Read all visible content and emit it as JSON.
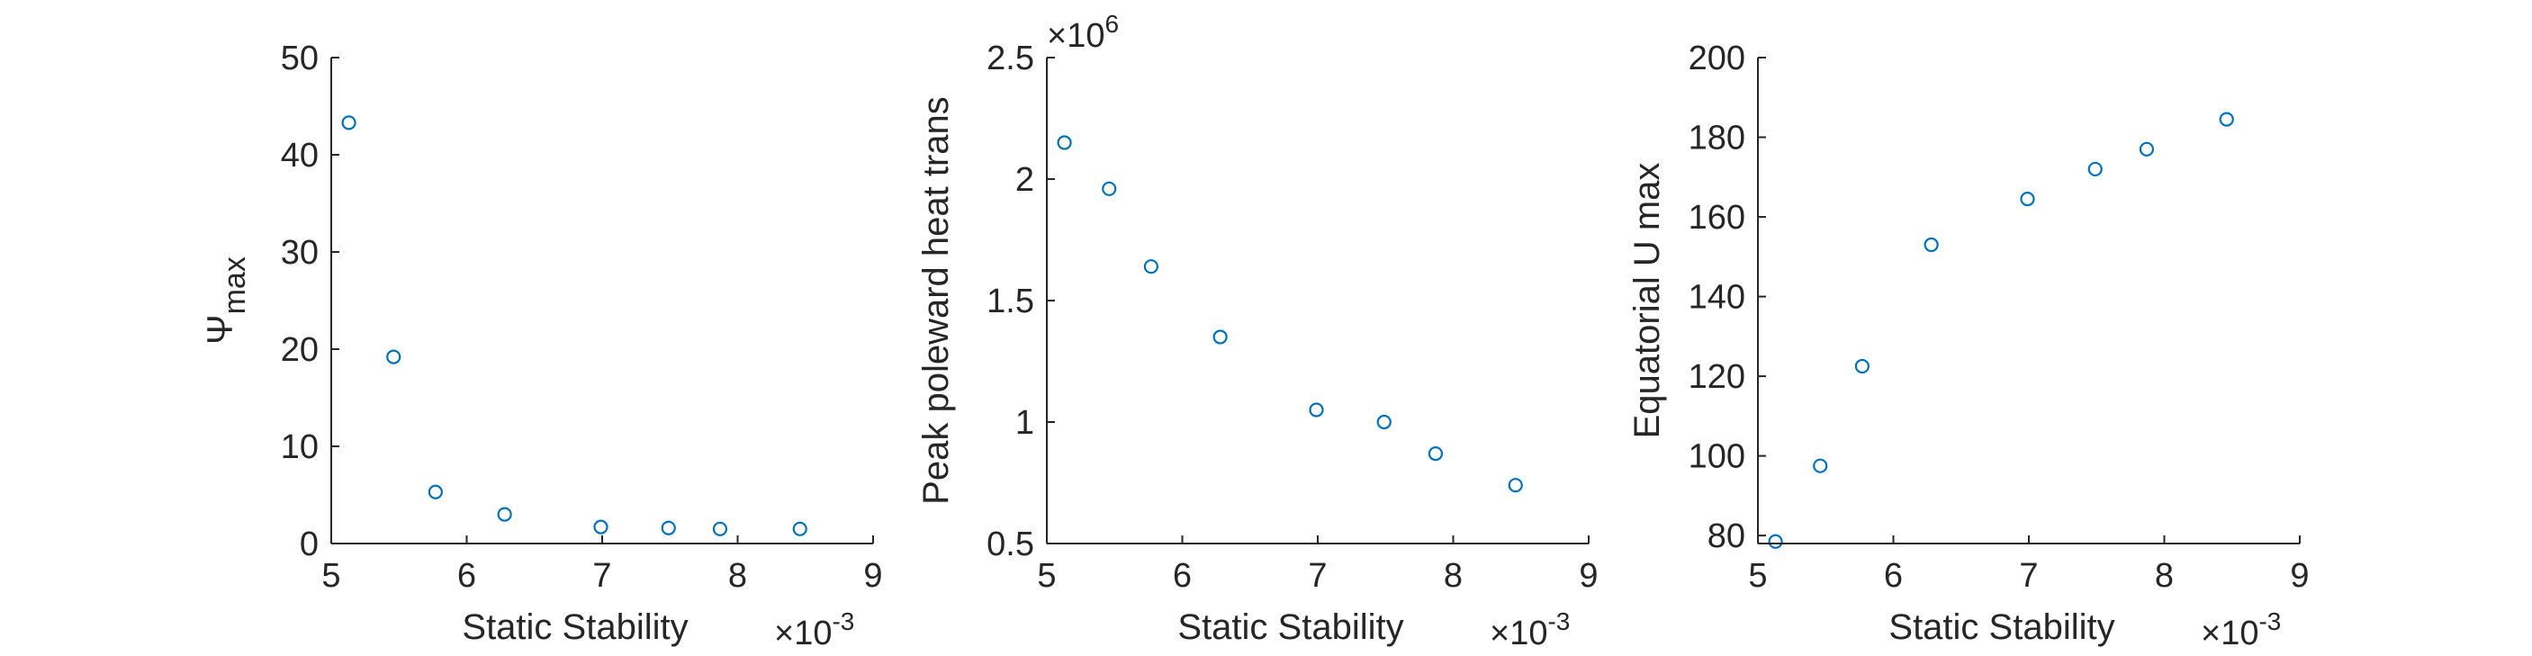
{
  "chart_data": [
    {
      "type": "scatter",
      "xlabel": "Static Stability",
      "x_multiplier": "×10^-3",
      "ylabel": "Ψmax",
      "ylabel_main": "Ψ",
      "ylabel_sub": "max",
      "xlim": [
        5,
        9
      ],
      "ylim": [
        0,
        50
      ],
      "xticks": [
        5,
        6,
        7,
        8,
        9
      ],
      "yticks": [
        0,
        10,
        20,
        30,
        40,
        50
      ],
      "marker_color": "#0072BD",
      "points": [
        {
          "x": 5.13,
          "y": 43.3
        },
        {
          "x": 5.46,
          "y": 19.2
        },
        {
          "x": 5.77,
          "y": 5.3
        },
        {
          "x": 6.28,
          "y": 3.0
        },
        {
          "x": 6.99,
          "y": 1.7
        },
        {
          "x": 7.49,
          "y": 1.6
        },
        {
          "x": 7.87,
          "y": 1.5
        },
        {
          "x": 8.46,
          "y": 1.5
        }
      ]
    },
    {
      "type": "scatter",
      "xlabel": "Static Stability",
      "x_multiplier": "×10^-3",
      "y_multiplier": "×10^6",
      "ylabel": "Peak poleward heat trans",
      "xlim": [
        5,
        9
      ],
      "ylim": [
        0.5,
        2.5
      ],
      "xticks": [
        5,
        6,
        7,
        8,
        9
      ],
      "yticks": [
        0.5,
        1,
        1.5,
        2,
        2.5
      ],
      "marker_color": "#0072BD",
      "points": [
        {
          "x": 5.13,
          "y": 2.15
        },
        {
          "x": 5.46,
          "y": 1.96
        },
        {
          "x": 5.77,
          "y": 1.64
        },
        {
          "x": 6.28,
          "y": 1.35
        },
        {
          "x": 6.99,
          "y": 1.05
        },
        {
          "x": 7.49,
          "y": 1.0
        },
        {
          "x": 7.87,
          "y": 0.87
        },
        {
          "x": 8.46,
          "y": 0.74
        }
      ]
    },
    {
      "type": "scatter",
      "xlabel": "Static Stability",
      "x_multiplier": "×10^-3",
      "ylabel": "Equatorial U max",
      "xlim": [
        5,
        9
      ],
      "ylim": [
        78,
        200
      ],
      "xticks": [
        5,
        6,
        7,
        8,
        9
      ],
      "yticks": [
        80,
        100,
        120,
        140,
        160,
        180,
        200
      ],
      "marker_color": "#0072BD",
      "points": [
        {
          "x": 5.13,
          "y": 78.5
        },
        {
          "x": 5.46,
          "y": 97.5
        },
        {
          "x": 5.77,
          "y": 122.5
        },
        {
          "x": 6.28,
          "y": 153.0
        },
        {
          "x": 6.99,
          "y": 164.5
        },
        {
          "x": 7.49,
          "y": 172.0
        },
        {
          "x": 7.87,
          "y": 177.0
        },
        {
          "x": 8.46,
          "y": 184.5
        }
      ]
    }
  ]
}
